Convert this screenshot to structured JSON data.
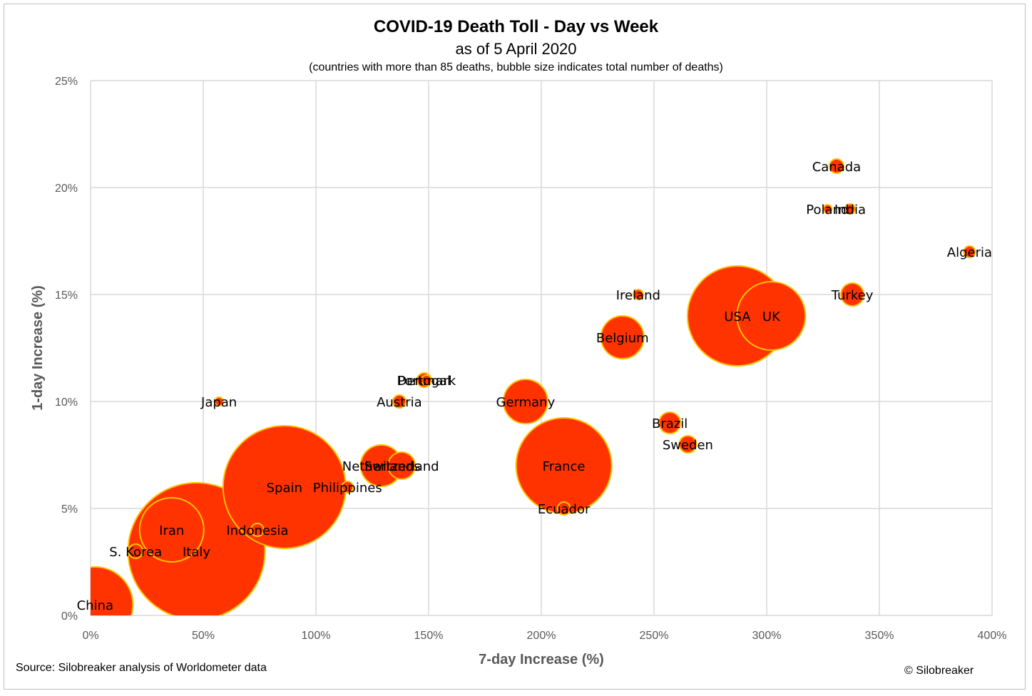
{
  "title": "COVID-19 Death Toll - Day vs Week",
  "subtitle": "as of 5 April 2020",
  "note": "(countries with more than 85 deaths, bubble size indicates total number of deaths)",
  "source": "Source: Silobreaker analysis of Worldometer data",
  "copyright": "© Silobreaker",
  "colors": {
    "bubble_fill": "#ff3300",
    "bubble_stroke": "#ffc000",
    "grid": "#d9d9d9",
    "tick_text": "#595959"
  },
  "chart_data": {
    "type": "scatter",
    "xlabel": "7-day Increase (%)",
    "ylabel": "1-day Increase (%)",
    "xlim": [
      0,
      400
    ],
    "ylim": [
      0,
      25
    ],
    "grid": true,
    "x_ticks": [
      "0%",
      "50%",
      "100%",
      "150%",
      "200%",
      "250%",
      "300%",
      "350%",
      "400%"
    ],
    "y_ticks": [
      "0%",
      "5%",
      "10%",
      "15%",
      "20%",
      "25%"
    ],
    "points": [
      {
        "label": "USA",
        "x": 287,
        "y": 14,
        "size": 70
      },
      {
        "label": "UK",
        "x": 302,
        "y": 14,
        "size": 48
      },
      {
        "label": "Spain",
        "x": 86,
        "y": 6,
        "size": 86
      },
      {
        "label": "Italy",
        "x": 47,
        "y": 3,
        "size": 96
      },
      {
        "label": "France",
        "x": 210,
        "y": 7,
        "size": 67
      },
      {
        "label": "Iran",
        "x": 36,
        "y": 4,
        "size": 45
      },
      {
        "label": "Netherlands",
        "x": 129,
        "y": 7,
        "size": 29
      },
      {
        "label": "Germany",
        "x": 193,
        "y": 10,
        "size": 31
      },
      {
        "label": "Belgium",
        "x": 236,
        "y": 13,
        "size": 30
      },
      {
        "label": "Switzerland",
        "x": 138,
        "y": 7,
        "size": 19
      },
      {
        "label": "China",
        "x": 2,
        "y": 0.5,
        "size": 53
      },
      {
        "label": "Turkey",
        "x": 338,
        "y": 15,
        "size": 16
      },
      {
        "label": "Brazil",
        "x": 257,
        "y": 9,
        "size": 15
      },
      {
        "label": "Sweden",
        "x": 265,
        "y": 8,
        "size": 12
      },
      {
        "label": "Canada",
        "x": 331,
        "y": 21,
        "size": 10
      },
      {
        "label": "Austria",
        "x": 137,
        "y": 10,
        "size": 9
      },
      {
        "label": "Portugal",
        "x": 148,
        "y": 11,
        "size": 10
      },
      {
        "label": "Denmark",
        "x": 149,
        "y": 11,
        "size": 7
      },
      {
        "label": "Indonesia",
        "x": 74,
        "y": 4,
        "size": 9
      },
      {
        "label": "Ireland",
        "x": 243,
        "y": 15,
        "size": 7
      },
      {
        "label": "Ecuador",
        "x": 210,
        "y": 5,
        "size": 9
      },
      {
        "label": "S. Korea",
        "x": 20,
        "y": 3,
        "size": 10
      },
      {
        "label": "Philippines",
        "x": 114,
        "y": 6,
        "size": 8
      },
      {
        "label": "Algeria",
        "x": 390,
        "y": 17,
        "size": 8
      },
      {
        "label": "Poland",
        "x": 327,
        "y": 19,
        "size": 6
      },
      {
        "label": "India",
        "x": 337,
        "y": 19,
        "size": 7
      },
      {
        "label": "Japan",
        "x": 57,
        "y": 10,
        "size": 6
      }
    ]
  }
}
